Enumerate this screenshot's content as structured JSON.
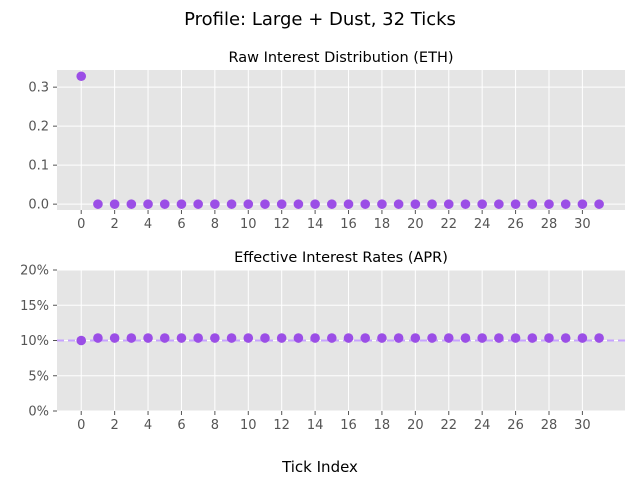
{
  "chart_data": {
    "suptitle": "Profile: Large + Dust, 32 Ticks",
    "xlabel": "Tick Index",
    "point_color": "#9b4ee6",
    "reference_line_color": "#c7a3ff",
    "background_color": "#e5e5e5",
    "panels": [
      {
        "type": "scatter",
        "title": "Raw Interest Distribution (ETH)",
        "x": [
          0,
          1,
          2,
          3,
          4,
          5,
          6,
          7,
          8,
          9,
          10,
          11,
          12,
          13,
          14,
          15,
          16,
          17,
          18,
          19,
          20,
          21,
          22,
          23,
          24,
          25,
          26,
          27,
          28,
          29,
          30,
          31
        ],
        "y": [
          0.328,
          0,
          0,
          0,
          0,
          0,
          0,
          0,
          0,
          0,
          0,
          0,
          0,
          0,
          0,
          0,
          0,
          0,
          0,
          0,
          0,
          0,
          0,
          0,
          0,
          0,
          0,
          0,
          0,
          0,
          0,
          0
        ],
        "xlim": [
          -1.45,
          32.55
        ],
        "ylim": [
          -0.015,
          0.344
        ],
        "yticks": [
          0.0,
          0.1,
          0.2,
          0.3
        ],
        "ytick_labels": [
          "0.0",
          "0.1",
          "0.2",
          "0.3"
        ],
        "xticks": [
          0,
          2,
          4,
          6,
          8,
          10,
          12,
          14,
          16,
          18,
          20,
          22,
          24,
          26,
          28,
          30
        ],
        "xtick_labels": [
          "0",
          "2",
          "4",
          "6",
          "8",
          "10",
          "12",
          "14",
          "16",
          "18",
          "20",
          "22",
          "24",
          "26",
          "28",
          "30"
        ],
        "grid": true
      },
      {
        "type": "scatter",
        "title": "Effective Interest Rates (APR)",
        "x": [
          0,
          1,
          2,
          3,
          4,
          5,
          6,
          7,
          8,
          9,
          10,
          11,
          12,
          13,
          14,
          15,
          16,
          17,
          18,
          19,
          20,
          21,
          22,
          23,
          24,
          25,
          26,
          27,
          28,
          29,
          30,
          31
        ],
        "y": [
          10.0,
          10.35,
          10.35,
          10.35,
          10.35,
          10.35,
          10.35,
          10.35,
          10.35,
          10.35,
          10.35,
          10.35,
          10.35,
          10.35,
          10.35,
          10.35,
          10.35,
          10.35,
          10.35,
          10.35,
          10.35,
          10.35,
          10.35,
          10.35,
          10.35,
          10.35,
          10.35,
          10.35,
          10.35,
          10.35,
          10.35,
          10.35
        ],
        "reference_line": 10.0,
        "xlim": [
          -1.45,
          32.55
        ],
        "ylim": [
          0,
          20
        ],
        "yticks": [
          0,
          5,
          10,
          15,
          20
        ],
        "ytick_labels": [
          "0%",
          "5%",
          "10%",
          "15%",
          "20%"
        ],
        "xticks": [
          0,
          2,
          4,
          6,
          8,
          10,
          12,
          14,
          16,
          18,
          20,
          22,
          24,
          26,
          28,
          30
        ],
        "xtick_labels": [
          "0",
          "2",
          "4",
          "6",
          "8",
          "10",
          "12",
          "14",
          "16",
          "18",
          "20",
          "22",
          "24",
          "26",
          "28",
          "30"
        ],
        "grid": true
      }
    ]
  }
}
